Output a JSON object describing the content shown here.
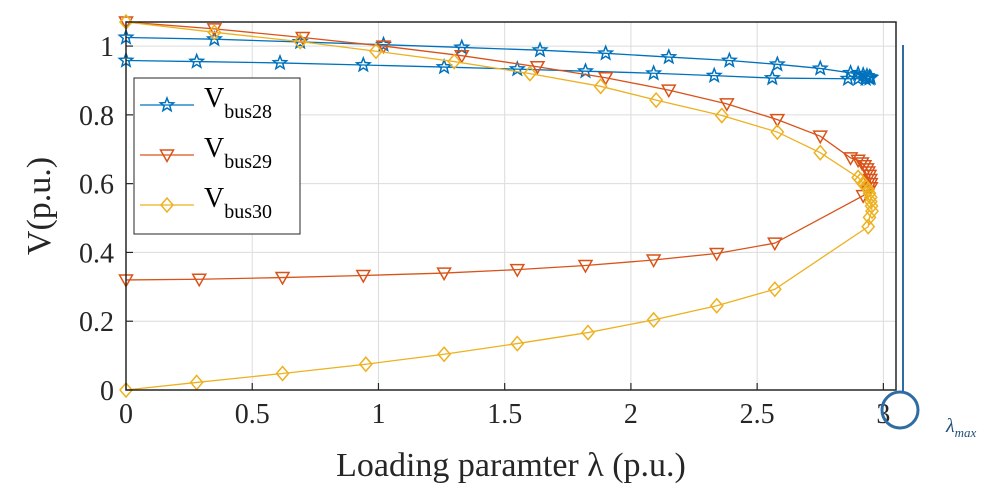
{
  "chart_data": {
    "type": "line",
    "xlabel": "Loading paramter λ (p.u.)",
    "ylabel": "V(p.u.)",
    "xlim": [
      0,
      3.05
    ],
    "ylim": [
      0,
      1.07
    ],
    "xticks": [
      "0",
      "0.5",
      "1",
      "1.5",
      "2",
      "2.5",
      "3"
    ],
    "xtick_values": [
      0,
      0.5,
      1,
      1.5,
      2,
      2.5,
      3
    ],
    "yticks": [
      "0",
      "0.2",
      "0.4",
      "0.6",
      "0.8",
      "1"
    ],
    "ytick_values": [
      0,
      0.2,
      0.4,
      0.6,
      0.8,
      1.0
    ],
    "grid": true,
    "legend_position": "left",
    "annotation": {
      "text": "λ",
      "subscript": "max",
      "x": 3.0
    },
    "series": [
      {
        "name": "V",
        "name_sub": "bus28",
        "color": "#0072BD",
        "marker": "star",
        "points": [
          [
            0,
            1.025
          ],
          [
            0.35,
            1.02
          ],
          [
            0.69,
            1.012
          ],
          [
            1.02,
            1.004
          ],
          [
            1.33,
            0.996
          ],
          [
            1.64,
            0.988
          ],
          [
            1.9,
            0.979
          ],
          [
            2.15,
            0.968
          ],
          [
            2.39,
            0.958
          ],
          [
            2.58,
            0.947
          ],
          [
            2.75,
            0.935
          ],
          [
            2.87,
            0.922
          ],
          [
            2.9,
            0.919
          ],
          [
            2.92,
            0.916
          ],
          [
            2.935,
            0.913
          ],
          [
            2.945,
            0.91
          ],
          [
            2.95,
            0.908
          ],
          [
            2.945,
            0.906
          ],
          [
            2.93,
            0.905
          ],
          [
            2.9,
            0.905
          ],
          [
            2.86,
            0.905
          ],
          [
            2.56,
            0.907
          ],
          [
            2.33,
            0.914
          ],
          [
            2.09,
            0.921
          ],
          [
            1.82,
            0.927
          ],
          [
            1.55,
            0.933
          ],
          [
            1.26,
            0.939
          ],
          [
            0.94,
            0.945
          ],
          [
            0.61,
            0.951
          ],
          [
            0.28,
            0.955
          ],
          [
            0,
            0.958
          ]
        ]
      },
      {
        "name": "V",
        "name_sub": "bus29",
        "color": "#D95319",
        "marker": "triangle-down",
        "points": [
          [
            0,
            1.07
          ],
          [
            0.35,
            1.05
          ],
          [
            0.7,
            1.025
          ],
          [
            1.02,
            1.0
          ],
          [
            1.33,
            0.972
          ],
          [
            1.63,
            0.94
          ],
          [
            1.9,
            0.908
          ],
          [
            2.15,
            0.872
          ],
          [
            2.38,
            0.832
          ],
          [
            2.58,
            0.786
          ],
          [
            2.75,
            0.738
          ],
          [
            2.87,
            0.675
          ],
          [
            2.9,
            0.668
          ],
          [
            2.915,
            0.66
          ],
          [
            2.925,
            0.652
          ],
          [
            2.935,
            0.643
          ],
          [
            2.94,
            0.634
          ],
          [
            2.945,
            0.624
          ],
          [
            2.948,
            0.612
          ],
          [
            2.95,
            0.6
          ],
          [
            2.95,
            0.588
          ],
          [
            2.94,
            0.578
          ],
          [
            2.92,
            0.565
          ],
          [
            2.57,
            0.427
          ],
          [
            2.34,
            0.397
          ],
          [
            2.09,
            0.378
          ],
          [
            1.82,
            0.362
          ],
          [
            1.55,
            0.35
          ],
          [
            1.26,
            0.34
          ],
          [
            0.94,
            0.333
          ],
          [
            0.62,
            0.327
          ],
          [
            0.29,
            0.322
          ],
          [
            0,
            0.32
          ]
        ]
      },
      {
        "name": "V",
        "name_sub": "bus30",
        "color": "#EDB120",
        "marker": "diamond",
        "points": [
          [
            0,
            1.07
          ],
          [
            0.35,
            1.04
          ],
          [
            0.69,
            1.013
          ],
          [
            0.99,
            0.985
          ],
          [
            1.3,
            0.955
          ],
          [
            1.6,
            0.92
          ],
          [
            1.88,
            0.883
          ],
          [
            2.1,
            0.843
          ],
          [
            2.36,
            0.798
          ],
          [
            2.58,
            0.75
          ],
          [
            2.75,
            0.69
          ],
          [
            2.9,
            0.618
          ],
          [
            2.91,
            0.61
          ],
          [
            2.92,
            0.6
          ],
          [
            2.93,
            0.592
          ],
          [
            2.94,
            0.583
          ],
          [
            2.945,
            0.572
          ],
          [
            2.95,
            0.56
          ],
          [
            2.95,
            0.548
          ],
          [
            2.953,
            0.535
          ],
          [
            2.955,
            0.52
          ],
          [
            2.945,
            0.502
          ],
          [
            2.94,
            0.475
          ],
          [
            2.57,
            0.293
          ],
          [
            2.34,
            0.245
          ],
          [
            2.09,
            0.204
          ],
          [
            1.83,
            0.167
          ],
          [
            1.55,
            0.135
          ],
          [
            1.26,
            0.104
          ],
          [
            0.95,
            0.075
          ],
          [
            0.62,
            0.048
          ],
          [
            0.28,
            0.022
          ],
          [
            0,
            0.0
          ]
        ]
      }
    ]
  }
}
